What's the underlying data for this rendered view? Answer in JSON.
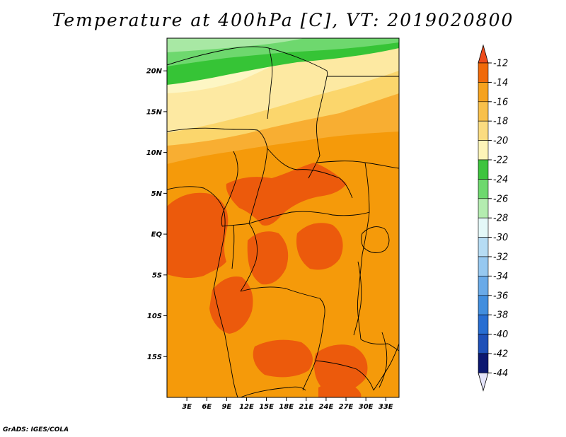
{
  "title": "Temperature at 400hPa [C], VT: 2019020800",
  "credit": "GrADS: IGES/COLA",
  "map": {
    "variable": "Temperature",
    "level": "400hPa",
    "units": "C",
    "valid_time": "2019020800",
    "lon_range": [
      0,
      35
    ],
    "lat_range": [
      -20,
      24
    ],
    "lat_ticks": [
      {
        "value": 20,
        "label": "20N"
      },
      {
        "value": 15,
        "label": "15N"
      },
      {
        "value": 10,
        "label": "10N"
      },
      {
        "value": 5,
        "label": "5N"
      },
      {
        "value": 0,
        "label": "EQ"
      },
      {
        "value": -5,
        "label": "5S"
      },
      {
        "value": -10,
        "label": "10S"
      },
      {
        "value": -15,
        "label": "15S"
      }
    ],
    "lon_ticks": [
      {
        "value": 3,
        "label": "3E"
      },
      {
        "value": 6,
        "label": "6E"
      },
      {
        "value": 9,
        "label": "9E"
      },
      {
        "value": 12,
        "label": "12E"
      },
      {
        "value": 15,
        "label": "15E"
      },
      {
        "value": 18,
        "label": "18E"
      },
      {
        "value": 21,
        "label": "21E"
      },
      {
        "value": 24,
        "label": "24E"
      },
      {
        "value": 27,
        "label": "27E"
      },
      {
        "value": 30,
        "label": "30E"
      },
      {
        "value": 33,
        "label": "33E"
      }
    ]
  },
  "colorbar": {
    "levels": [
      {
        "label": "-12",
        "color": "#e8501e"
      },
      {
        "label": "-14",
        "color": "#f06a0a"
      },
      {
        "label": "-16",
        "color": "#f5a21e"
      },
      {
        "label": "-18",
        "color": "#f8c04a"
      },
      {
        "label": "-20",
        "color": "#fbdc80"
      },
      {
        "label": "-22",
        "color": "#fdf4b8"
      },
      {
        "label": "-24",
        "color": "#3ec43e"
      },
      {
        "label": "-26",
        "color": "#6ed86e"
      },
      {
        "label": "-28",
        "color": "#b4ecb0"
      },
      {
        "label": "-30",
        "color": "#e4f8f8"
      },
      {
        "label": "-32",
        "color": "#b6dcf4"
      },
      {
        "label": "-34",
        "color": "#96c8f0"
      },
      {
        "label": "-36",
        "color": "#6aaae8"
      },
      {
        "label": "-38",
        "color": "#428ede"
      },
      {
        "label": "-40",
        "color": "#286ed2"
      },
      {
        "label": "-42",
        "color": "#1e50b8"
      },
      {
        "label": "-44",
        "color": "#0c1870"
      }
    ],
    "top_color": "#ee4c1c",
    "bottom_color": "#e4e4fa"
  },
  "colors": {
    "t_m12": "#ec5a0c",
    "t_m14": "#f59a0a",
    "t_m16": "#f8ae32",
    "t_m18": "#fbd66c",
    "t_m20": "#fde9a2",
    "t_m22": "#fdf6c4",
    "t_m24": "#36c436",
    "t_m26": "#6ed86e",
    "t_m28": "#a8e8a4"
  }
}
